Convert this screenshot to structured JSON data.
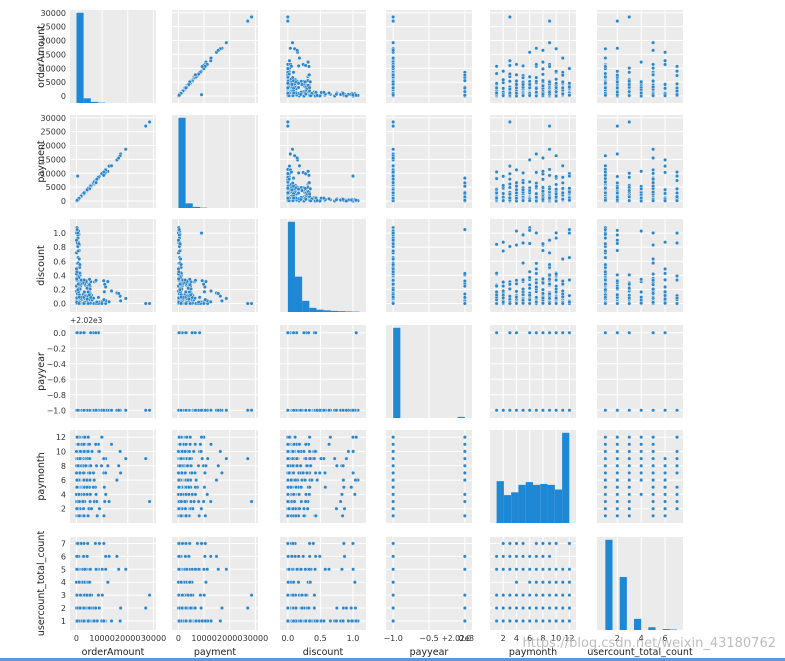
{
  "chart_data": {
    "type": "scatter",
    "kind": "pairplot",
    "point_color": "#2e86c9",
    "bar_color": "#1f88d4",
    "variables": [
      {
        "name": "orderAmount",
        "label": "orderAmount",
        "lim": [
          -2500,
          31000
        ],
        "ticks": [
          0,
          10000,
          20000,
          30000
        ],
        "tick_labels": [
          "0",
          "10000",
          "20000",
          "30000"
        ],
        "row_ticks": [
          0,
          5000,
          10000,
          15000,
          20000,
          25000,
          30000
        ],
        "row_tick_labels": [
          "0",
          "5000",
          "10000",
          "15000",
          "20000",
          "25000",
          "30000"
        ]
      },
      {
        "name": "payment",
        "label": "payment",
        "lim": [
          -2500,
          31000
        ],
        "ticks": [
          0,
          10000,
          20000,
          30000
        ],
        "tick_labels": [
          "0",
          "10000",
          "20000",
          "30000"
        ],
        "row_ticks": [
          0,
          5000,
          10000,
          15000,
          20000,
          25000,
          30000
        ],
        "row_tick_labels": [
          "0",
          "5000",
          "10000",
          "15000",
          "20000",
          "25000",
          "30000"
        ]
      },
      {
        "name": "discount",
        "label": "discount",
        "lim": [
          -0.12,
          1.2
        ],
        "ticks": [
          0,
          0.5,
          1.0
        ],
        "tick_labels": [
          "0.0",
          "0.5",
          "1.0"
        ],
        "row_ticks": [
          0,
          0.2,
          0.4,
          0.6,
          0.8,
          1.0
        ],
        "row_tick_labels": [
          "0.0",
          "0.2",
          "0.4",
          "0.6",
          "0.8",
          "1.0"
        ]
      },
      {
        "name": "payyear",
        "label": "payyear",
        "lim": [
          -1.1,
          0.1
        ],
        "ticks": [
          -1,
          -0.5,
          0
        ],
        "tick_labels": [
          "−1.0",
          "−0.5",
          "0.0"
        ],
        "row_ticks": [
          -1,
          -0.8,
          -0.6,
          -0.4,
          -0.2,
          0
        ],
        "row_tick_labels": [
          "−1.0",
          "−0.8",
          "−0.6",
          "−0.4",
          "−0.2",
          "0.0"
        ],
        "offset_text": "+2.02e3"
      },
      {
        "name": "paymonth",
        "label": "paymonth",
        "lim": [
          0,
          13
        ],
        "ticks": [
          2,
          4,
          6,
          8,
          10,
          12
        ],
        "tick_labels": [
          "2",
          "4",
          "6",
          "8",
          "10",
          "12"
        ],
        "row_ticks": [
          2,
          4,
          6,
          8,
          10,
          12
        ],
        "row_tick_labels": [
          "2",
          "4",
          "6",
          "8",
          "10",
          "12"
        ]
      },
      {
        "name": "usercount_total_count",
        "label": "usercount_total_count",
        "lim": [
          0.3,
          7.5
        ],
        "ticks": [
          2,
          4,
          6
        ],
        "tick_labels": [
          "2",
          "4",
          "6"
        ],
        "row_ticks": [
          1,
          2,
          3,
          4,
          5,
          6,
          7
        ],
        "row_tick_labels": [
          "1",
          "2",
          "3",
          "4",
          "5",
          "6",
          "7"
        ]
      }
    ],
    "histograms": [
      {
        "variable": "orderAmount",
        "edges": [
          0,
          2800,
          5600,
          8400,
          11200
        ],
        "heights": [
          0.97,
          0.05,
          0.012,
          0.004
        ]
      },
      {
        "variable": "payment",
        "edges": [
          0,
          2800,
          5600,
          8400,
          11200
        ],
        "heights": [
          0.97,
          0.05,
          0.012,
          0.004
        ]
      },
      {
        "variable": "discount",
        "edges": [
          0,
          0.11,
          0.22,
          0.33,
          0.44,
          0.55,
          0.66,
          0.77,
          0.88,
          0.99,
          1.1
        ],
        "heights": [
          0.97,
          0.38,
          0.12,
          0.045,
          0.025,
          0.018,
          0.012,
          0.009,
          0.006,
          0.004
        ]
      },
      {
        "variable": "payyear",
        "edges": [
          -1.0,
          -0.9,
          -0.1,
          0.0
        ],
        "heights": [
          0.97,
          0,
          0.012
        ]
      },
      {
        "variable": "paymonth",
        "edges": [
          1,
          2.1,
          3.2,
          4.3,
          5.4,
          6.5,
          7.6,
          8.7,
          9.8,
          10.9,
          12.0
        ],
        "heights": [
          0.45,
          0.3,
          0.33,
          0.41,
          0.44,
          0.41,
          0.42,
          0.41,
          0.36,
          0.97
        ]
      },
      {
        "variable": "usercount_total_count",
        "edges": [
          1,
          1.6,
          2.2,
          2.8,
          3.4,
          4.0,
          4.6,
          5.2,
          5.8,
          6.4,
          7.0
        ],
        "heights": [
          0.97,
          0,
          0.57,
          0,
          0.12,
          0,
          0.03,
          0,
          0.01,
          0.005
        ]
      }
    ],
    "watermark": "https://blog.csdn.net/weixin_43180762"
  }
}
